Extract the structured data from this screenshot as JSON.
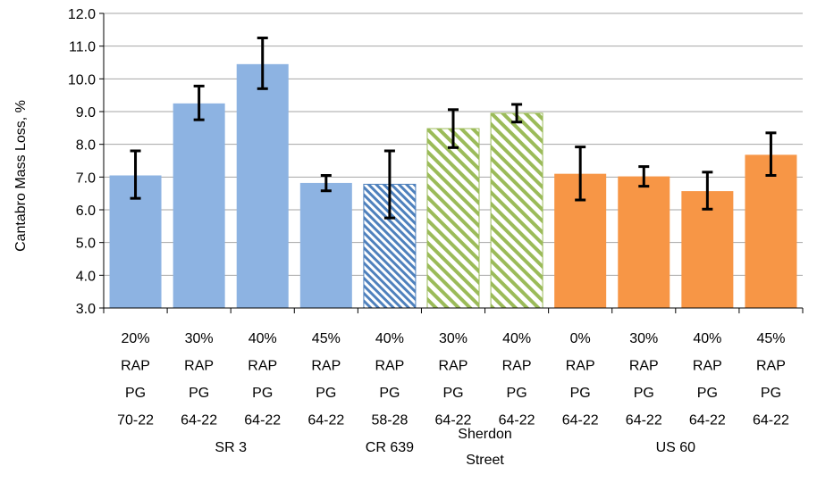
{
  "chart_data": {
    "type": "bar",
    "title": "",
    "xlabel": "",
    "ylabel": "Cantabro Mass Loss, %",
    "ylim": [
      3.0,
      12.0
    ],
    "yticks": [
      "3.0",
      "4.0",
      "5.0",
      "6.0",
      "7.0",
      "8.0",
      "9.0",
      "10.0",
      "11.0",
      "12.0"
    ],
    "grid": true,
    "legend": "none",
    "categories": [
      [
        "20%",
        "RAP",
        "PG",
        "70-22"
      ],
      [
        "30%",
        "RAP",
        "PG",
        "64-22"
      ],
      [
        "40%",
        "RAP",
        "PG",
        "64-22"
      ],
      [
        "45%",
        "RAP",
        "PG",
        "64-22"
      ],
      [
        "40%",
        "RAP",
        "PG",
        "58-28"
      ],
      [
        "30%",
        "RAP",
        "PG",
        "64-22"
      ],
      [
        "40%",
        "RAP",
        "PG",
        "64-22"
      ],
      [
        "0%",
        "RAP",
        "PG",
        "64-22"
      ],
      [
        "30%",
        "RAP",
        "PG",
        "64-22"
      ],
      [
        "40%",
        "RAP",
        "PG",
        "64-22"
      ],
      [
        "45%",
        "RAP",
        "PG",
        "64-22"
      ]
    ],
    "groups": [
      {
        "label": [
          "SR 3"
        ],
        "start": 0,
        "end": 3
      },
      {
        "label": [
          "CR 639"
        ],
        "start": 4,
        "end": 4
      },
      {
        "label": [
          "Sherdon",
          "Street"
        ],
        "start": 5,
        "end": 6
      },
      {
        "label": [
          "US 60"
        ],
        "start": 7,
        "end": 10
      }
    ],
    "values": [
      7.05,
      9.25,
      10.45,
      6.82,
      6.78,
      8.48,
      8.95,
      7.1,
      7.02,
      6.57,
      7.68
    ],
    "error_low": [
      6.35,
      8.75,
      9.7,
      6.58,
      5.75,
      7.9,
      8.68,
      6.3,
      6.72,
      6.02,
      7.05
    ],
    "error_high": [
      7.8,
      9.78,
      11.25,
      7.05,
      7.8,
      9.06,
      9.22,
      7.92,
      7.32,
      7.15,
      8.35
    ],
    "bar_styles": [
      "solid-blue",
      "solid-blue",
      "solid-blue",
      "solid-blue",
      "hatch-blue",
      "hatch-green",
      "hatch-green",
      "solid-orange",
      "solid-orange",
      "solid-orange",
      "solid-orange"
    ],
    "colors": {
      "blue": "#8db3e2",
      "blue_hatch": "#4f81bd",
      "green": "#9bbb59",
      "orange": "#f79646",
      "grid": "#a6a6a6",
      "axis": "#000000"
    }
  }
}
